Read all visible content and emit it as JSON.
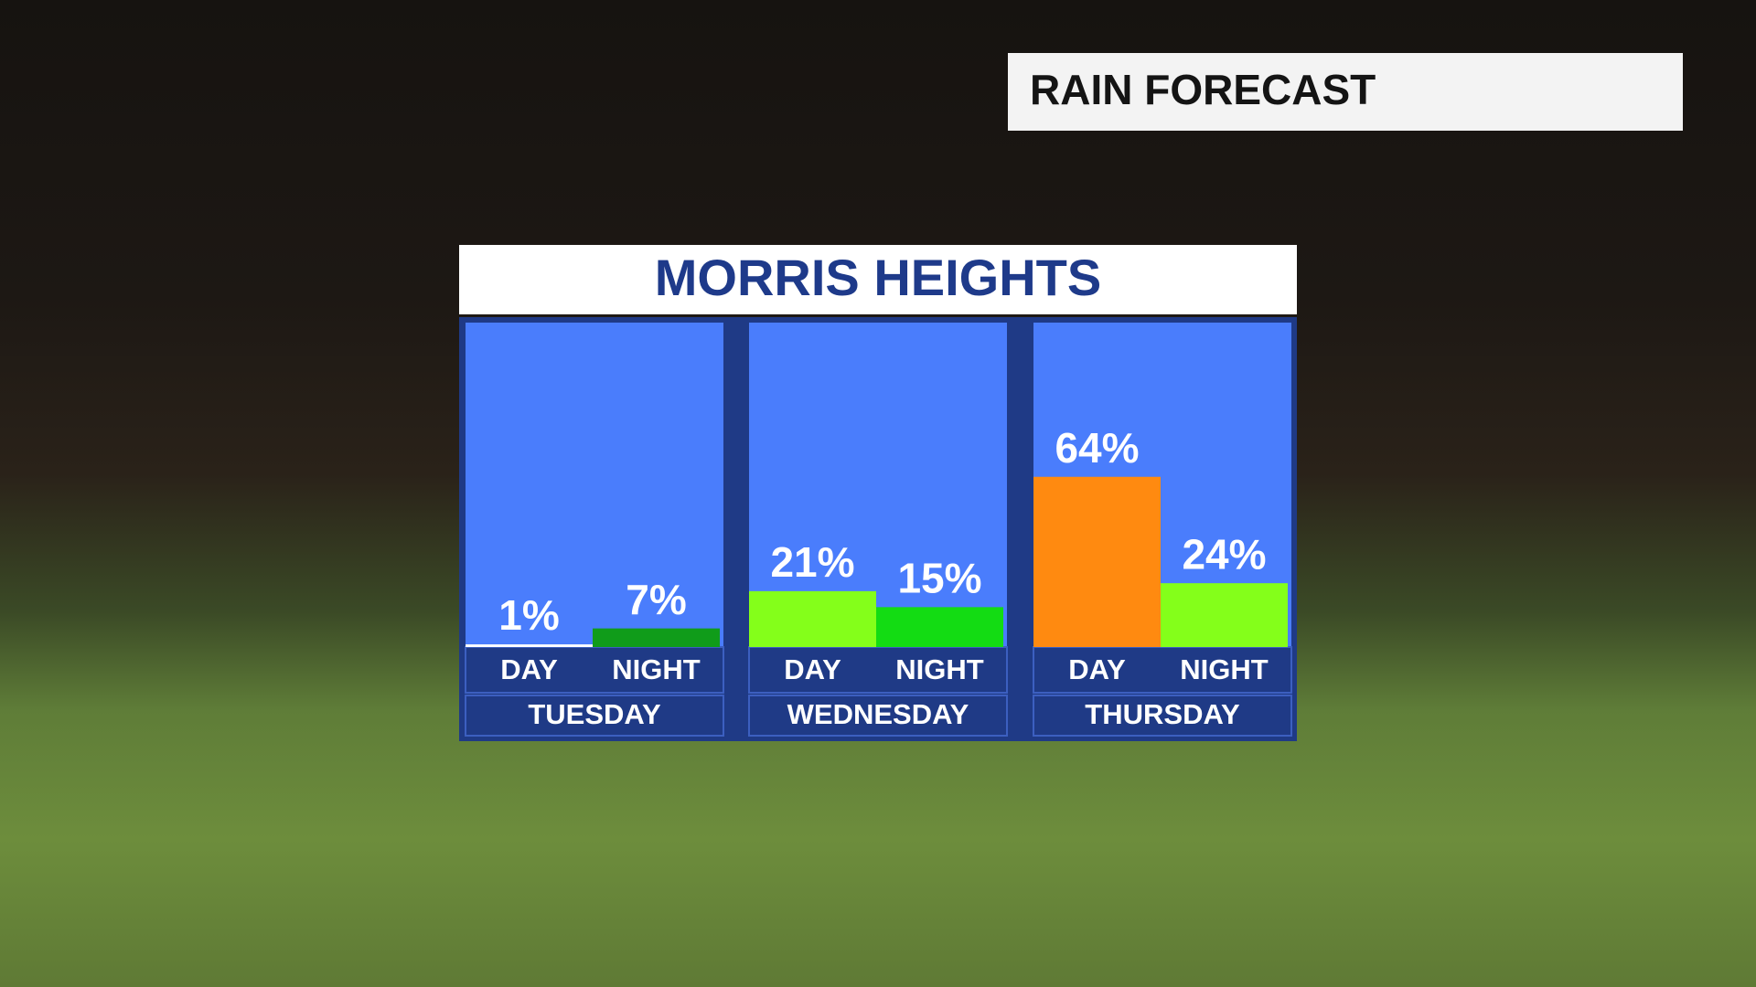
{
  "header": "RAIN FORECAST",
  "chart_data": {
    "type": "bar",
    "title": "MORRIS HEIGHTS",
    "groups": [
      {
        "name": "TUESDAY",
        "categories": [
          "DAY",
          "NIGHT"
        ],
        "values": [
          1,
          7
        ],
        "value_labels": [
          "1%",
          "7%"
        ],
        "colors": [
          "#ffffff",
          "#109c1a"
        ]
      },
      {
        "name": "WEDNESDAY",
        "categories": [
          "DAY",
          "NIGHT"
        ],
        "values": [
          21,
          15
        ],
        "value_labels": [
          "21%",
          "15%"
        ],
        "colors": [
          "#84ff1a",
          "#13dc13"
        ]
      },
      {
        "name": "THURSDAY",
        "categories": [
          "DAY",
          "NIGHT"
        ],
        "values": [
          64,
          24
        ],
        "value_labels": [
          "64%",
          "24%"
        ],
        "colors": [
          "#ff8a10",
          "#84ff1a"
        ]
      }
    ]
  }
}
